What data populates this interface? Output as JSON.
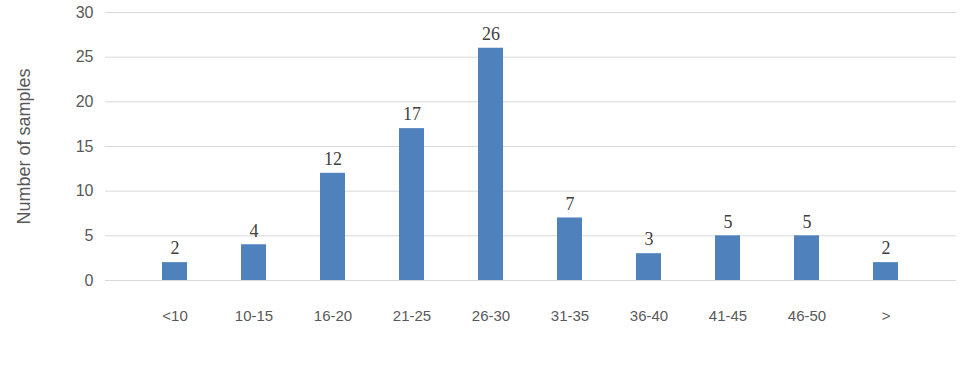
{
  "chart_data": {
    "type": "bar",
    "y_label": "Number of samples",
    "categories": [
      "<10",
      "10-15",
      "16-20",
      "21-25",
      "26-30",
      "31-35",
      "36-40",
      "41-45",
      "46-50",
      ">"
    ],
    "values": [
      2,
      4,
      12,
      17,
      26,
      7,
      3,
      5,
      5,
      2
    ],
    "color": "#4f81bd",
    "ylim": [
      0,
      30
    ],
    "yticks": [
      0,
      5,
      10,
      15,
      20,
      25,
      30
    ],
    "grid": true,
    "data_labels": true
  }
}
